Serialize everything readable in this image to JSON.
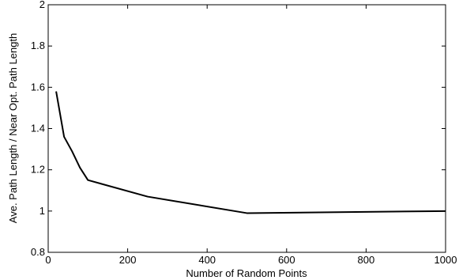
{
  "chart_data": {
    "type": "line",
    "title": "",
    "xlabel": "Number of Random Points",
    "ylabel": "Ave. Path Length / Near Opt. Path Length",
    "xlim": [
      0,
      1000
    ],
    "ylim": [
      0.8,
      2
    ],
    "xticks": [
      0,
      200,
      400,
      600,
      800,
      1000
    ],
    "yticks": [
      0.8,
      1,
      1.2,
      1.4,
      1.6,
      1.8,
      2
    ],
    "grid": false,
    "legend": "none",
    "series": [
      {
        "x": [
          20,
          40,
          60,
          80,
          100,
          250,
          500,
          1000
        ],
        "y": [
          1.58,
          1.36,
          1.29,
          1.21,
          1.15,
          1.07,
          0.99,
          1.0
        ]
      }
    ],
    "line_color": "#000000"
  }
}
